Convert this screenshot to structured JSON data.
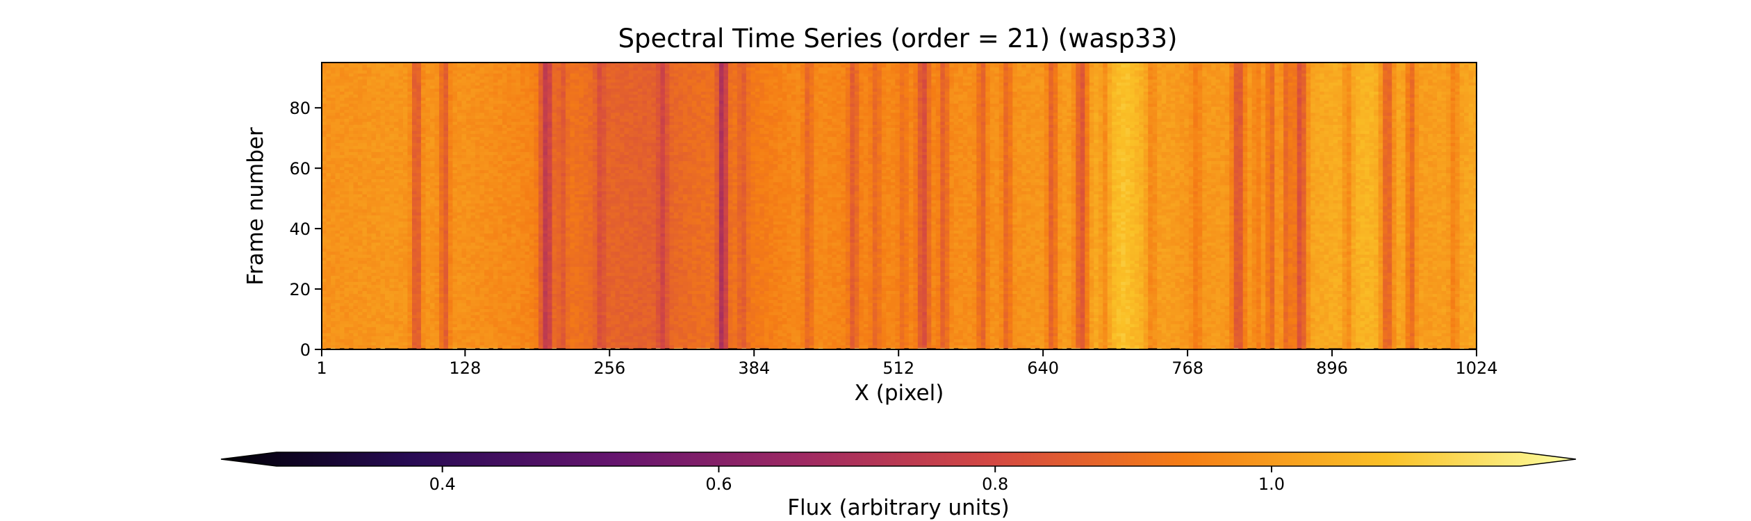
{
  "chart_data": {
    "type": "heatmap",
    "title": "Spectral Time Series (order = 21) (wasp33)",
    "xlabel": "X (pixel)",
    "ylabel": "Frame number",
    "xlim": [
      1,
      1024
    ],
    "ylim": [
      0,
      95
    ],
    "x_ticks": [
      1,
      128,
      256,
      384,
      512,
      640,
      768,
      896,
      1024
    ],
    "y_ticks": [
      0,
      20,
      40,
      60,
      80
    ],
    "frames": 96,
    "colormap": "inferno",
    "colorbar": {
      "label": "Flux (arbitrary units)",
      "range": [
        0.28,
        1.18
      ],
      "extend": "both",
      "orientation": "horizontal",
      "ticks": [
        0.4,
        0.6,
        0.8,
        1.0
      ]
    },
    "continuum_profile": [
      [
        1,
        0.96
      ],
      [
        60,
        0.97
      ],
      [
        128,
        0.96
      ],
      [
        180,
        0.94
      ],
      [
        230,
        0.89
      ],
      [
        256,
        0.86
      ],
      [
        290,
        0.85
      ],
      [
        330,
        0.88
      ],
      [
        384,
        0.91
      ],
      [
        430,
        0.95
      ],
      [
        470,
        0.93
      ],
      [
        512,
        0.94
      ],
      [
        560,
        0.95
      ],
      [
        600,
        0.96
      ],
      [
        640,
        0.97
      ],
      [
        680,
        0.99
      ],
      [
        712,
        1.06
      ],
      [
        740,
        0.99
      ],
      [
        768,
        0.97
      ],
      [
        820,
        0.98
      ],
      [
        880,
        1.0
      ],
      [
        930,
        1.03
      ],
      [
        980,
        0.98
      ],
      [
        1024,
        1.0
      ]
    ],
    "absorption_lines": [
      {
        "x": 85,
        "depth": 0.14,
        "width": 3
      },
      {
        "x": 110,
        "depth": 0.12,
        "width": 3
      },
      {
        "x": 200,
        "depth": 0.18,
        "width": 4
      },
      {
        "x": 214,
        "depth": 0.07,
        "width": 3
      },
      {
        "x": 248,
        "depth": 0.06,
        "width": 3
      },
      {
        "x": 303,
        "depth": 0.08,
        "width": 3
      },
      {
        "x": 356,
        "depth": 0.2,
        "width": 3
      },
      {
        "x": 374,
        "depth": 0.06,
        "width": 3
      },
      {
        "x": 432,
        "depth": 0.08,
        "width": 3
      },
      {
        "x": 472,
        "depth": 0.09,
        "width": 3
      },
      {
        "x": 492,
        "depth": 0.06,
        "width": 3
      },
      {
        "x": 516,
        "depth": 0.05,
        "width": 3
      },
      {
        "x": 534,
        "depth": 0.14,
        "width": 4
      },
      {
        "x": 552,
        "depth": 0.1,
        "width": 3
      },
      {
        "x": 586,
        "depth": 0.1,
        "width": 3
      },
      {
        "x": 608,
        "depth": 0.09,
        "width": 3
      },
      {
        "x": 648,
        "depth": 0.12,
        "width": 3
      },
      {
        "x": 674,
        "depth": 0.16,
        "width": 4
      },
      {
        "x": 695,
        "depth": 0.07,
        "width": 3
      },
      {
        "x": 736,
        "depth": 0.06,
        "width": 3
      },
      {
        "x": 776,
        "depth": 0.05,
        "width": 3
      },
      {
        "x": 813,
        "depth": 0.16,
        "width": 4
      },
      {
        "x": 830,
        "depth": 0.06,
        "width": 3
      },
      {
        "x": 842,
        "depth": 0.12,
        "width": 3
      },
      {
        "x": 856,
        "depth": 0.12,
        "width": 3
      },
      {
        "x": 868,
        "depth": 0.18,
        "width": 4
      },
      {
        "x": 910,
        "depth": 0.07,
        "width": 3
      },
      {
        "x": 945,
        "depth": 0.16,
        "width": 4
      },
      {
        "x": 966,
        "depth": 0.12,
        "width": 3
      },
      {
        "x": 1004,
        "depth": 0.06,
        "width": 3
      }
    ]
  }
}
